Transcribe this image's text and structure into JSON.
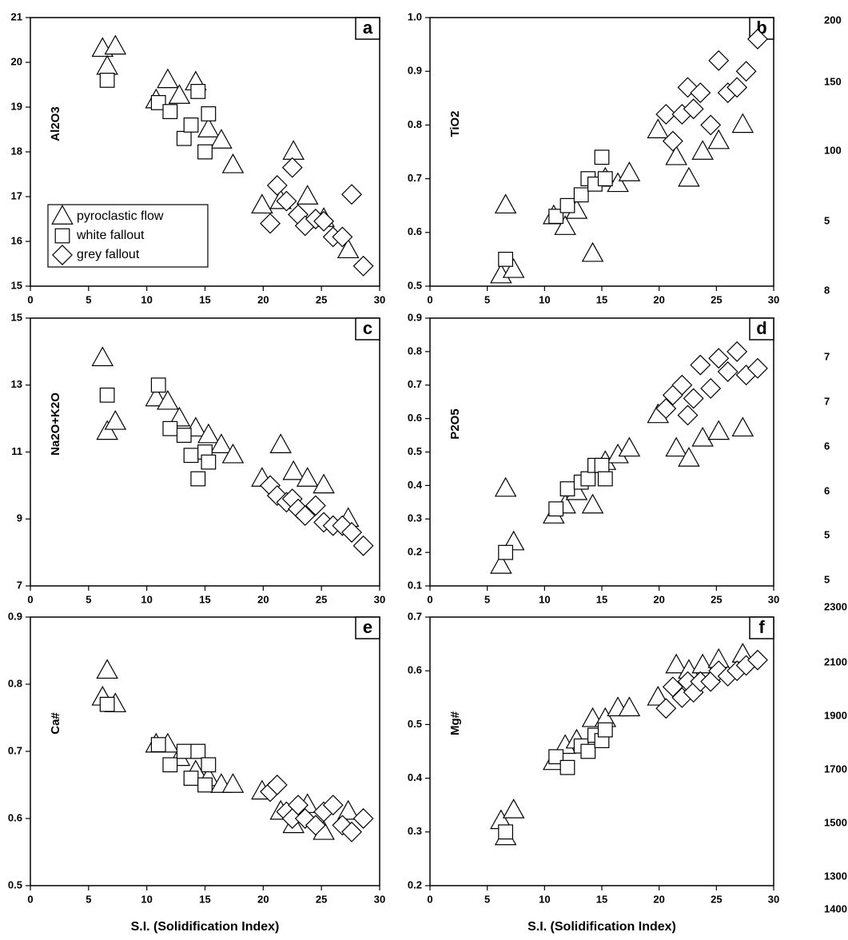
{
  "chart_data": [
    {
      "type": "scatter",
      "panel_label": "a",
      "ylabel": "Al2O3",
      "legend": "lower-left",
      "xlim": [
        0,
        30
      ],
      "xticks": [
        0,
        5,
        10,
        15,
        20,
        25,
        30
      ],
      "ylim": [
        15,
        21
      ],
      "yticks": [
        15,
        16,
        17,
        18,
        19,
        20,
        21
      ],
      "series": [
        {
          "name": "pyroclastic flow",
          "marker": "triangle",
          "color": "#000000",
          "x": [
            6.2,
            6.6,
            7.3,
            10.8,
            11.8,
            12.8,
            14.2,
            15.3,
            16.4,
            17.4,
            19.9,
            21.5,
            22.6,
            23.8,
            25.2,
            27.3
          ],
          "values": [
            20.3,
            19.9,
            20.35,
            19.15,
            19.6,
            19.25,
            19.55,
            18.5,
            18.25,
            17.7,
            16.8,
            16.9,
            18.0,
            17.0,
            16.5,
            15.8
          ]
        },
        {
          "name": "white fallout",
          "marker": "square",
          "color": "#000000",
          "x": [
            6.6,
            11.0,
            12.0,
            13.2,
            13.8,
            14.4,
            15.0,
            15.3
          ],
          "values": [
            19.6,
            19.1,
            18.9,
            18.3,
            18.6,
            19.35,
            18.0,
            18.85
          ]
        },
        {
          "name": "grey fallout",
          "marker": "diamond",
          "color": "#000000",
          "x": [
            20.6,
            21.2,
            22.0,
            22.5,
            23.0,
            23.6,
            24.5,
            25.2,
            26.0,
            26.8,
            27.6,
            28.6
          ],
          "values": [
            16.4,
            17.25,
            16.9,
            17.65,
            16.6,
            16.35,
            16.5,
            16.45,
            16.1,
            16.1,
            17.05,
            15.45
          ]
        }
      ]
    },
    {
      "type": "scatter",
      "panel_label": "b",
      "ylabel": "TiO2",
      "xlim": [
        0,
        30
      ],
      "xticks": [
        0,
        5,
        10,
        15,
        20,
        25,
        30
      ],
      "ylim": [
        0.5,
        1.0
      ],
      "yticks": [
        0.5,
        0.6,
        0.7,
        0.8,
        0.9,
        {
          "value": 1,
          "label": "1.0"
        }
      ],
      "series": [
        {
          "name": "pyroclastic flow",
          "marker": "triangle",
          "color": "#000000",
          "x": [
            6.2,
            6.6,
            7.3,
            10.8,
            11.8,
            12.8,
            14.2,
            15.3,
            16.4,
            17.4,
            19.9,
            21.5,
            22.6,
            23.8,
            25.2,
            27.3
          ],
          "values": [
            0.52,
            0.65,
            0.53,
            0.63,
            0.61,
            0.64,
            0.56,
            0.7,
            0.69,
            0.71,
            0.79,
            0.74,
            0.7,
            0.75,
            0.77,
            0.8
          ]
        },
        {
          "name": "white fallout",
          "marker": "square",
          "color": "#000000",
          "x": [
            6.6,
            11.0,
            12.0,
            13.2,
            13.8,
            14.4,
            15.0,
            15.3
          ],
          "values": [
            0.55,
            0.63,
            0.65,
            0.67,
            0.7,
            0.69,
            0.74,
            0.7
          ]
        },
        {
          "name": "grey fallout",
          "marker": "diamond",
          "color": "#000000",
          "x": [
            20.6,
            21.2,
            22.0,
            22.5,
            23.0,
            23.6,
            24.5,
            25.2,
            26.0,
            26.8,
            27.6,
            28.6
          ],
          "values": [
            0.82,
            0.77,
            0.82,
            0.87,
            0.83,
            0.86,
            0.8,
            0.92,
            0.86,
            0.87,
            0.9,
            0.96
          ]
        }
      ]
    },
    {
      "type": "scatter",
      "panel_label": "c",
      "ylabel": "Na2O+K2O",
      "xlim": [
        0,
        30
      ],
      "xticks": [
        0,
        5,
        10,
        15,
        20,
        25,
        30
      ],
      "ylim": [
        7,
        15
      ],
      "yticks": [
        7,
        9,
        11,
        13,
        15
      ],
      "series": [
        {
          "name": "pyroclastic flow",
          "marker": "triangle",
          "color": "#000000",
          "x": [
            6.2,
            6.6,
            7.3,
            10.8,
            11.8,
            12.8,
            14.2,
            15.3,
            16.4,
            17.4,
            19.9,
            21.5,
            22.6,
            23.8,
            25.2,
            27.3
          ],
          "values": [
            13.8,
            11.6,
            11.9,
            12.6,
            12.5,
            12.0,
            11.7,
            11.5,
            11.2,
            10.9,
            10.2,
            11.2,
            10.4,
            10.2,
            10.0,
            9.0
          ]
        },
        {
          "name": "white fallout",
          "marker": "square",
          "color": "#000000",
          "x": [
            6.6,
            11.0,
            12.0,
            13.2,
            13.8,
            14.4,
            15.0,
            15.3
          ],
          "values": [
            12.7,
            13.0,
            11.7,
            11.5,
            10.9,
            10.2,
            11.0,
            10.7
          ]
        },
        {
          "name": "grey fallout",
          "marker": "diamond",
          "color": "#000000",
          "x": [
            20.6,
            21.2,
            22.0,
            22.5,
            23.0,
            23.6,
            24.5,
            25.2,
            26.0,
            26.8,
            27.6,
            28.6
          ],
          "values": [
            10.0,
            9.7,
            9.5,
            9.6,
            9.3,
            9.1,
            9.4,
            8.9,
            8.8,
            8.8,
            8.6,
            8.2
          ]
        }
      ]
    },
    {
      "type": "scatter",
      "panel_label": "d",
      "ylabel": "P2O5",
      "xlim": [
        0,
        30
      ],
      "xticks": [
        0,
        5,
        10,
        15,
        20,
        25,
        30
      ],
      "ylim": [
        0.1,
        0.9
      ],
      "yticks": [
        0.1,
        0.2,
        0.3,
        0.4,
        0.5,
        0.6,
        0.7,
        0.8,
        0.9
      ],
      "series": [
        {
          "name": "pyroclastic flow",
          "marker": "triangle",
          "color": "#000000",
          "x": [
            6.2,
            6.6,
            7.3,
            10.8,
            11.8,
            12.8,
            14.2,
            15.3,
            16.4,
            17.4,
            19.9,
            21.5,
            22.6,
            23.8,
            25.2,
            27.3
          ],
          "values": [
            0.16,
            0.39,
            0.23,
            0.31,
            0.34,
            0.38,
            0.34,
            0.47,
            0.49,
            0.51,
            0.61,
            0.51,
            0.48,
            0.54,
            0.56,
            0.57
          ]
        },
        {
          "name": "white fallout",
          "marker": "square",
          "color": "#000000",
          "x": [
            6.6,
            11.0,
            12.0,
            13.2,
            13.8,
            14.4,
            15.0,
            15.3
          ],
          "values": [
            0.2,
            0.33,
            0.39,
            0.41,
            0.42,
            0.46,
            0.46,
            0.42
          ]
        },
        {
          "name": "grey fallout",
          "marker": "diamond",
          "color": "#000000",
          "x": [
            20.6,
            21.2,
            22.0,
            22.5,
            23.0,
            23.6,
            24.5,
            25.2,
            26.0,
            26.8,
            27.6,
            28.6
          ],
          "values": [
            0.63,
            0.67,
            0.7,
            0.61,
            0.66,
            0.76,
            0.69,
            0.78,
            0.74,
            0.8,
            0.73,
            0.75
          ]
        }
      ]
    },
    {
      "type": "scatter",
      "panel_label": "e",
      "ylabel": "Ca#",
      "xlabel": "S.I. (Solidification Index)",
      "xlim": [
        0,
        30
      ],
      "xticks": [
        0,
        5,
        10,
        15,
        20,
        25,
        30
      ],
      "ylim": [
        0.5,
        0.9
      ],
      "yticks": [
        0.5,
        0.6,
        0.7,
        0.8,
        0.9
      ],
      "series": [
        {
          "name": "pyroclastic flow",
          "marker": "triangle",
          "color": "#000000",
          "x": [
            6.2,
            6.6,
            7.3,
            10.8,
            11.8,
            12.8,
            14.2,
            15.3,
            16.4,
            17.4,
            19.9,
            21.5,
            22.6,
            23.8,
            25.2,
            27.3
          ],
          "values": [
            0.78,
            0.82,
            0.77,
            0.71,
            0.71,
            0.69,
            0.67,
            0.66,
            0.65,
            0.65,
            0.64,
            0.61,
            0.59,
            0.62,
            0.58,
            0.61
          ]
        },
        {
          "name": "white fallout",
          "marker": "square",
          "color": "#000000",
          "x": [
            6.6,
            11.0,
            12.0,
            13.2,
            13.8,
            14.4,
            15.0,
            15.3
          ],
          "values": [
            0.77,
            0.71,
            0.68,
            0.7,
            0.66,
            0.7,
            0.65,
            0.68
          ]
        },
        {
          "name": "grey fallout",
          "marker": "diamond",
          "color": "#000000",
          "x": [
            20.6,
            21.2,
            22.0,
            22.5,
            23.0,
            23.6,
            24.5,
            25.2,
            26.0,
            26.8,
            27.6,
            28.6
          ],
          "values": [
            0.64,
            0.65,
            0.61,
            0.6,
            0.62,
            0.6,
            0.59,
            0.61,
            0.62,
            0.59,
            0.58,
            0.6
          ]
        }
      ]
    },
    {
      "type": "scatter",
      "panel_label": "f",
      "ylabel": "Mg#",
      "xlabel": "S.I. (Solidification Index)",
      "xlim": [
        0,
        30
      ],
      "xticks": [
        0,
        5,
        10,
        15,
        20,
        25,
        30
      ],
      "ylim": [
        0.2,
        0.7
      ],
      "yticks": [
        0.2,
        0.3,
        0.4,
        0.5,
        0.6,
        0.7
      ],
      "series": [
        {
          "name": "pyroclastic flow",
          "marker": "triangle",
          "color": "#000000",
          "x": [
            6.2,
            6.6,
            7.3,
            10.8,
            11.8,
            12.8,
            14.2,
            15.3,
            16.4,
            17.4,
            19.9,
            21.5,
            22.6,
            23.8,
            25.2,
            27.3
          ],
          "values": [
            0.32,
            0.29,
            0.34,
            0.43,
            0.46,
            0.47,
            0.51,
            0.51,
            0.53,
            0.53,
            0.55,
            0.61,
            0.6,
            0.61,
            0.62,
            0.63
          ]
        },
        {
          "name": "white fallout",
          "marker": "square",
          "color": "#000000",
          "x": [
            6.6,
            11.0,
            12.0,
            13.2,
            13.8,
            14.4,
            15.0,
            15.3
          ],
          "values": [
            0.3,
            0.44,
            0.42,
            0.46,
            0.45,
            0.48,
            0.47,
            0.49
          ]
        },
        {
          "name": "grey fallout",
          "marker": "diamond",
          "color": "#000000",
          "x": [
            20.6,
            21.2,
            22.0,
            22.5,
            23.0,
            23.6,
            24.5,
            25.2,
            26.0,
            26.8,
            27.6,
            28.6
          ],
          "values": [
            0.53,
            0.57,
            0.55,
            0.58,
            0.56,
            0.58,
            0.58,
            0.6,
            0.59,
            0.6,
            0.61,
            0.62
          ]
        }
      ]
    }
  ],
  "edge_labels": [
    "200",
    "150",
    "100",
    "5",
    "8",
    "7",
    "7",
    "6",
    "6",
    "5",
    "5",
    "2300",
    "2100",
    "1900",
    "1700",
    "1500",
    "1300",
    "1400"
  ]
}
